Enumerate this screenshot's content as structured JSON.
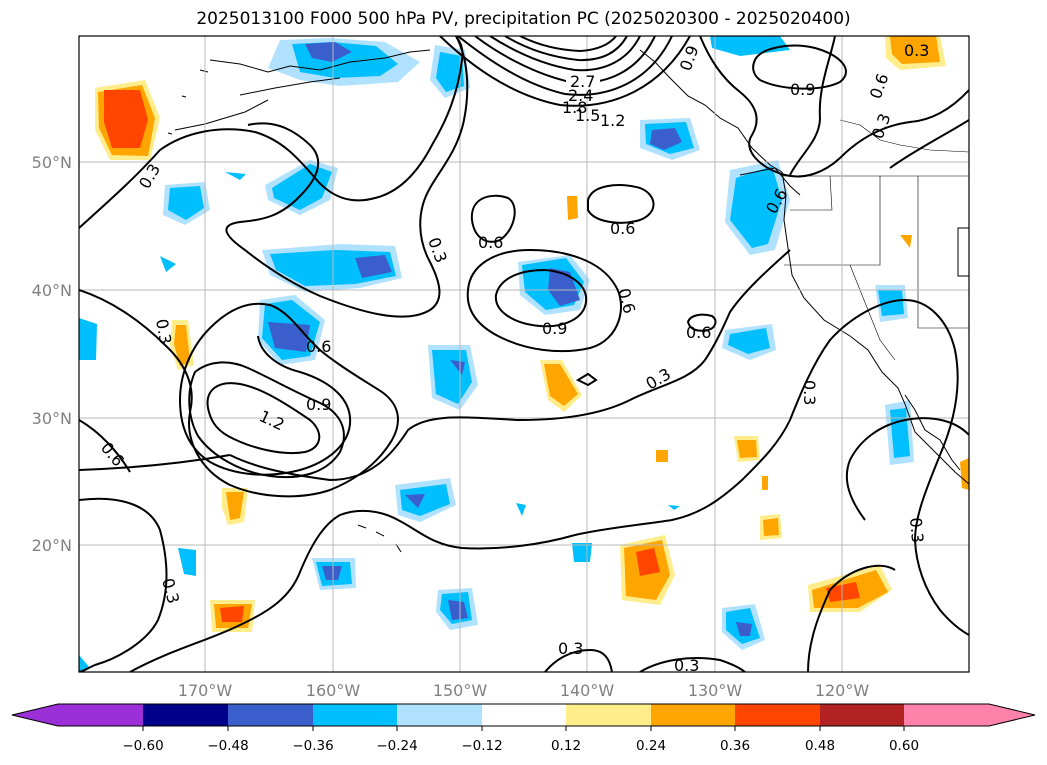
{
  "title": "2025013100 F000 500 hPa PV, precipitation PC (2025020300 - 2025020400)",
  "map": {
    "lat_labels": [
      "50°N",
      "40°N",
      "30°N",
      "20°N"
    ],
    "lon_labels": [
      "170°W",
      "160°W",
      "150°W",
      "140°W",
      "130°W",
      "120°W"
    ],
    "contour_labels": [
      "2.7",
      "2.4",
      "1.8",
      "1.5",
      "1.2",
      "0.9",
      "0.6",
      "0.3",
      "0.6",
      "0.9",
      "0.6",
      "0.3",
      "0.6",
      "0.3",
      "0.3",
      "0.3",
      "0.6",
      "0.9",
      "0.9",
      "0.3",
      "1.2",
      "0.9",
      "0.6",
      "0.3",
      "0.6",
      "0.3",
      "0.3",
      "0.3",
      "0.9",
      "0.6"
    ]
  },
  "colorbar": {
    "ticks": [
      "−0.60",
      "−0.48",
      "−0.36",
      "−0.24",
      "−0.12",
      "0.12",
      "0.24",
      "0.36",
      "0.48",
      "0.60"
    ],
    "colors": {
      "below": "#9b30d8",
      "n060": "#00008b",
      "n048": "#3a5fcd",
      "n036": "#00bfff",
      "n024": "#b0e2ff",
      "zero": "#ffffff",
      "p012": "#ffec8b",
      "p024": "#ffa500",
      "p036": "#ff4500",
      "p048": "#b22222",
      "above": "#ff82ab"
    }
  }
}
